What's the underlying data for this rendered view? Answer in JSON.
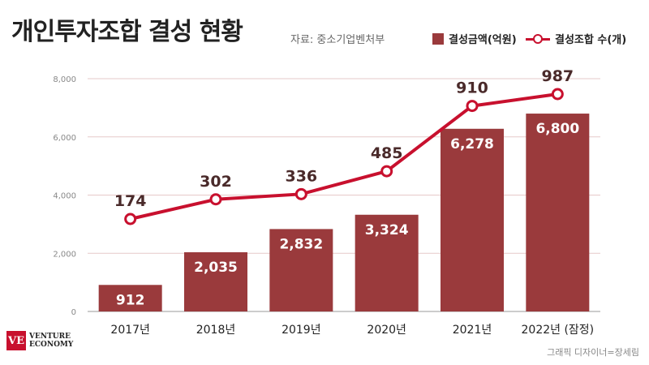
{
  "title": "개인투자조합 결성 현황",
  "source": "자료: 중소기업벤처부",
  "legend": {
    "bar_label": "결성금액(억원)",
    "line_label": "결성조합 수(개)"
  },
  "colors": {
    "bar": "#9a3a3c",
    "line": "#c8102e"
  },
  "logo": {
    "mark": "VE",
    "line1": "VENTURE",
    "line2": "ECONOMY"
  },
  "credit": "그래픽 디자이너=장세림",
  "chart_data": {
    "type": "bar",
    "categories": [
      "2017년",
      "2018년",
      "2019년",
      "2020년",
      "2021년",
      "2022년 (잠정)"
    ],
    "series": [
      {
        "name": "결성금액(억원)",
        "type": "bar",
        "values": [
          912,
          2035,
          2832,
          3324,
          6278,
          6800
        ],
        "labels": [
          "912",
          "2,035",
          "2,832",
          "3,324",
          "6,278",
          "6,800"
        ]
      },
      {
        "name": "결성조합 수(개)",
        "type": "line",
        "values": [
          174,
          302,
          336,
          485,
          910,
          987
        ],
        "labels": [
          "174",
          "302",
          "336",
          "485",
          "910",
          "987"
        ]
      }
    ],
    "yticks": [
      "0",
      "2,000",
      "4,000",
      "6,000",
      "8,000"
    ],
    "ylim": [
      0,
      8000
    ],
    "grid": true,
    "legend": "top-right"
  }
}
